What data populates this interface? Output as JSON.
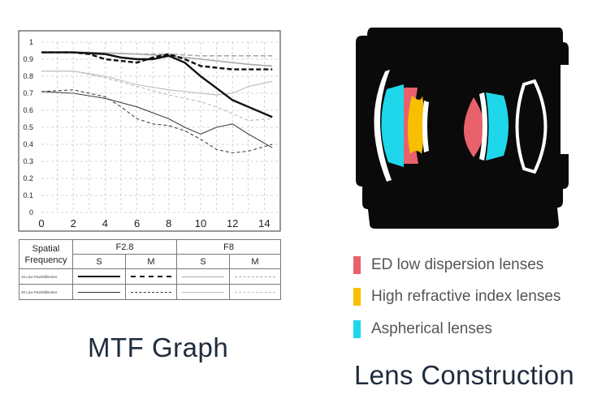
{
  "chart_data": {
    "type": "line",
    "title": "MTF Graph",
    "xlabel": "",
    "ylabel": "",
    "xlim": [
      0,
      15
    ],
    "ylim": [
      0,
      1
    ],
    "xticks": [
      "0",
      "2",
      "4",
      "6",
      "8",
      "10",
      "12",
      "14"
    ],
    "yticks": [
      "0",
      "0.1",
      "0.2",
      "0.3",
      "0.4",
      "0.5",
      "0.6",
      "0.7",
      "0.8",
      "0.9",
      "1"
    ],
    "grid": true,
    "series": [
      {
        "aperture": "F2.8",
        "freq": "10 Line Pair/Millimeter",
        "orient": "S",
        "x": [
          0,
          2,
          4,
          5,
          6,
          7,
          8,
          9,
          10,
          11,
          12,
          13,
          14.5
        ],
        "y": [
          0.94,
          0.94,
          0.93,
          0.91,
          0.9,
          0.9,
          0.92,
          0.88,
          0.8,
          0.73,
          0.66,
          0.62,
          0.56
        ]
      },
      {
        "aperture": "F2.8",
        "freq": "10 Line Pair/Millimeter",
        "orient": "M",
        "x": [
          0,
          2,
          3,
          4,
          5,
          6,
          7,
          8,
          9,
          10,
          11,
          12,
          13,
          14.5
        ],
        "y": [
          0.94,
          0.94,
          0.93,
          0.9,
          0.89,
          0.88,
          0.91,
          0.93,
          0.9,
          0.86,
          0.85,
          0.84,
          0.84,
          0.84
        ]
      },
      {
        "aperture": "F2.8",
        "freq": "30 Line Pair/Millimeter",
        "orient": "S",
        "x": [
          0,
          2,
          4,
          6,
          8,
          9,
          10,
          11,
          12,
          13,
          14.5
        ],
        "y": [
          0.71,
          0.7,
          0.67,
          0.62,
          0.55,
          0.5,
          0.46,
          0.5,
          0.52,
          0.46,
          0.38
        ]
      },
      {
        "aperture": "F2.8",
        "freq": "30 Line Pair/Millimeter",
        "orient": "M",
        "x": [
          0,
          2,
          4,
          5,
          6,
          7,
          8,
          9,
          10,
          11,
          12,
          13,
          14.5
        ],
        "y": [
          0.71,
          0.72,
          0.68,
          0.62,
          0.55,
          0.52,
          0.51,
          0.48,
          0.43,
          0.37,
          0.35,
          0.36,
          0.4
        ]
      },
      {
        "aperture": "F8",
        "freq": "10 Line Pair/Millimeter",
        "orient": "S",
        "x": [
          0,
          3,
          6,
          8,
          10,
          12,
          13,
          14.5
        ],
        "y": [
          0.94,
          0.94,
          0.93,
          0.92,
          0.9,
          0.88,
          0.87,
          0.86
        ]
      },
      {
        "aperture": "F8",
        "freq": "10 Line Pair/Millimeter",
        "orient": "M",
        "x": [
          0,
          3,
          6,
          8,
          10,
          12,
          13,
          14.5
        ],
        "y": [
          0.94,
          0.94,
          0.93,
          0.93,
          0.92,
          0.92,
          0.92,
          0.92
        ]
      },
      {
        "aperture": "F8",
        "freq": "30 Line Pair/Millimeter",
        "orient": "S",
        "x": [
          0,
          2,
          4,
          6,
          8,
          10,
          11,
          12,
          13,
          14.5
        ],
        "y": [
          0.83,
          0.83,
          0.8,
          0.75,
          0.72,
          0.7,
          0.69,
          0.7,
          0.74,
          0.77
        ]
      },
      {
        "aperture": "F8",
        "freq": "30 Line Pair/Millimeter",
        "orient": "M",
        "x": [
          0,
          2,
          4,
          6,
          8,
          10,
          11,
          12,
          13,
          14.5
        ],
        "y": [
          0.83,
          0.83,
          0.79,
          0.74,
          0.69,
          0.65,
          0.62,
          0.58,
          0.54,
          0.55
        ]
      }
    ]
  },
  "legend_table": {
    "spatial_label_1": "Spatial",
    "spatial_label_2": "Frequency",
    "aperture_1": "F2.8",
    "aperture_2": "F8",
    "s_label": "S",
    "m_label": "M",
    "row_10": "10 Line Pair/Millimeter",
    "row_30": "30 Line Pair/Millimeter"
  },
  "captions": {
    "mtf": "MTF Graph",
    "lens": "Lens Construction"
  },
  "lens_legend": [
    {
      "label": "ED low dispersion lenses",
      "color": "#e8616b"
    },
    {
      "label": "High refractive index lenses",
      "color": "#f6c000"
    },
    {
      "label": "Aspherical lenses",
      "color": "#1fd7ea"
    }
  ],
  "colors": {
    "ed": "#e8616b",
    "hri": "#f6c000",
    "asph": "#1fd7ea",
    "barrel": "#0a0a0a"
  }
}
